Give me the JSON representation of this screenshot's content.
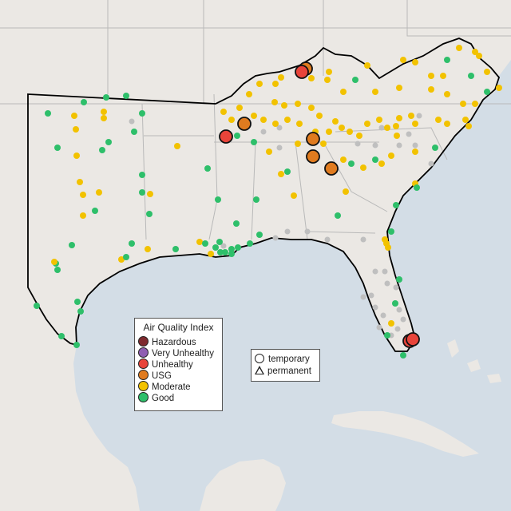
{
  "legend": {
    "title": "Air Quality Index",
    "categories": [
      {
        "label": "Hazardous",
        "color": "#7e2a2e"
      },
      {
        "label": "Very Unhealthy",
        "color": "#8f5fb2"
      },
      {
        "label": "Unhealthy",
        "color": "#e8443a"
      },
      {
        "label": "USG",
        "color": "#e07b1f"
      },
      {
        "label": "Moderate",
        "color": "#f2c200"
      },
      {
        "label": "Good",
        "color": "#2ebf6a"
      }
    ],
    "monitor_types": [
      {
        "label": "temporary",
        "symbol": "circle"
      },
      {
        "label": "permanent",
        "symbol": "triangle"
      }
    ]
  },
  "colors": {
    "water": "#d3dde6",
    "land": "#ebe8e4",
    "border": "#b9b9b9",
    "region_outline": "#000000",
    "no_data": "#bfbfbf"
  }
}
